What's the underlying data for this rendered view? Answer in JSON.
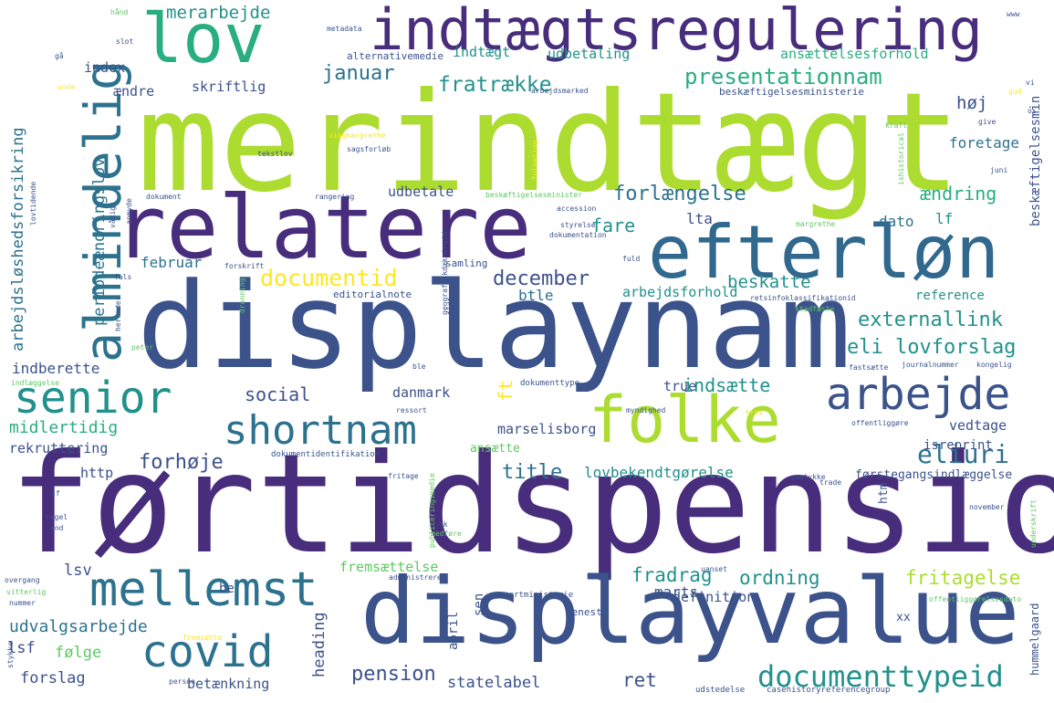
{
  "palette": {
    "purple_dark": "#440154",
    "indigo": "#472d7b",
    "blue": "#3b528b",
    "steel": "#2c728e",
    "teal": "#21918c",
    "green": "#28ae80",
    "lime": "#5ec962",
    "yellowgreen": "#addc30",
    "yellow": "#fde725"
  },
  "words": [
    {
      "text": "merindtægt",
      "color": "#addc30",
      "weight": 1.0
    },
    {
      "text": "førtidspension",
      "color": "#472d7b",
      "weight": 0.96
    },
    {
      "text": "displaynam",
      "color": "#3b528b",
      "weight": 0.92
    },
    {
      "text": "displayvalue",
      "color": "#3b528b",
      "weight": 0.74
    },
    {
      "text": "relatere",
      "color": "#472d7b",
      "weight": 0.72
    },
    {
      "text": "efterløn",
      "color": "#31688e",
      "weight": 0.62
    },
    {
      "text": "folke",
      "color": "#addc30",
      "weight": 0.56
    },
    {
      "text": "lov",
      "color": "#28ae80",
      "weight": 0.56
    },
    {
      "text": "indtægtsregulering",
      "color": "#472d7b",
      "weight": 0.5
    },
    {
      "text": "almindelig",
      "color": "#2c728e",
      "weight": 0.45
    },
    {
      "text": "senior",
      "color": "#21918c",
      "weight": 0.43
    },
    {
      "text": "mellemst",
      "color": "#2c728e",
      "weight": 0.43
    },
    {
      "text": "arbejde",
      "color": "#3b528b",
      "weight": 0.41
    },
    {
      "text": "shortnam",
      "color": "#2c728e",
      "weight": 0.39
    },
    {
      "text": "covid",
      "color": "#2c728e",
      "weight": 0.39
    },
    {
      "text": "documenttypeid",
      "color": "#21918c",
      "weight": 0.3
    },
    {
      "text": "eliuri",
      "color": "#2c728e",
      "weight": 0.25
    },
    {
      "text": "documentid",
      "color": "#fde725",
      "weight": 0.23
    },
    {
      "text": "presentationnam",
      "color": "#28ae80",
      "weight": 0.22
    },
    {
      "text": "fratrække",
      "color": "#21918c",
      "weight": 0.21
    },
    {
      "text": "externallink",
      "color": "#21918c",
      "weight": 0.2
    },
    {
      "text": "eli lovforslag",
      "color": "#21918c",
      "weight": 0.2
    },
    {
      "text": "pension",
      "color": "#3b528b",
      "weight": 0.2
    },
    {
      "text": "title",
      "color": "#2c728e",
      "weight": 0.2
    },
    {
      "text": "forhøje",
      "color": "#3b528b",
      "weight": 0.2
    },
    {
      "text": "forlængelse",
      "color": "#2c728e",
      "weight": 0.2
    },
    {
      "text": "januar",
      "color": "#2c728e",
      "weight": 0.2
    },
    {
      "text": "december",
      "color": "#3b528b",
      "weight": 0.2
    },
    {
      "text": "ordning",
      "color": "#21918c",
      "weight": 0.19
    },
    {
      "text": "fritagelse",
      "color": "#addc30",
      "weight": 0.19
    },
    {
      "text": "fradrag",
      "color": "#21918c",
      "weight": 0.19
    },
    {
      "text": "ret",
      "color": "#3b528b",
      "weight": 0.19
    },
    {
      "text": "ændring",
      "color": "#28ae80",
      "weight": 0.18
    },
    {
      "text": "social",
      "color": "#3b528b",
      "weight": 0.18
    },
    {
      "text": "indsætte",
      "color": "#21918c",
      "weight": 0.18
    },
    {
      "text": "ft",
      "color": "#fde725",
      "weight": 0.18
    },
    {
      "text": "merarbejde",
      "color": "#21918c",
      "weight": 0.17
    },
    {
      "text": "fare",
      "color": "#21918c",
      "weight": 0.17
    },
    {
      "text": "beskatte",
      "color": "#21918c",
      "weight": 0.17
    },
    {
      "text": "høj",
      "color": "#3b528b",
      "weight": 0.17
    },
    {
      "text": "udvalgsarbejde",
      "color": "#2c728e",
      "weight": 0.16
    },
    {
      "text": "midlertidig",
      "color": "#28ae80",
      "weight": 0.16
    },
    {
      "text": "arbejdsløshedsforsikring",
      "color": "#2c728e",
      "weight": 0.15
    },
    {
      "text": "periodeændringslov",
      "color": "#2c728e",
      "weight": 0.15
    },
    {
      "text": "heading",
      "color": "#3b528b",
      "weight": 0.15
    },
    {
      "text": "statelabel",
      "color": "#3b528b",
      "weight": 0.15
    },
    {
      "text": "forslag",
      "color": "#3b528b",
      "weight": 0.15
    },
    {
      "text": "følge",
      "color": "#5ec962",
      "weight": 0.15
    },
    {
      "text": "lsf",
      "color": "#3b528b",
      "weight": 0.15
    },
    {
      "text": "lsv",
      "color": "#3b528b",
      "weight": 0.15
    },
    {
      "text": "marts",
      "color": "#3b528b",
      "weight": 0.15
    },
    {
      "text": "lovbekendtgørelse",
      "color": "#21918c",
      "weight": 0.14
    },
    {
      "text": "btle",
      "color": "#2c728e",
      "weight": 0.14
    },
    {
      "text": "lta",
      "color": "#3b528b",
      "weight": 0.14
    },
    {
      "text": "dato",
      "color": "#2c728e",
      "weight": 0.14
    },
    {
      "text": "lf",
      "color": "#21918c",
      "weight": 0.14
    },
    {
      "text": "foretage",
      "color": "#2c728e",
      "weight": 0.14
    },
    {
      "text": "februar",
      "color": "#2c728e",
      "weight": 0.14
    },
    {
      "text": "indberette",
      "color": "#3b528b",
      "weight": 0.14
    },
    {
      "text": "arbejdsforhold",
      "color": "#21918c",
      "weight": 0.13
    },
    {
      "text": "definition",
      "color": "#3b528b",
      "weight": 0.13
    },
    {
      "text": "betænkning",
      "color": "#3b528b",
      "weight": 0.13
    },
    {
      "text": "udbetale",
      "color": "#3b528b",
      "weight": 0.13
    },
    {
      "text": "udbetaling",
      "color": "#21918c",
      "weight": 0.13
    },
    {
      "text": "indtægt",
      "color": "#21918c",
      "weight": 0.13
    },
    {
      "text": "ansættelsesforhold",
      "color": "#28ae80",
      "weight": 0.13
    },
    {
      "text": "skriftlig",
      "color": "#3b528b",
      "weight": 0.13
    },
    {
      "text": "ændre",
      "color": "#3b528b",
      "weight": 0.13
    },
    {
      "text": "index",
      "color": "#3b528b",
      "weight": 0.13
    },
    {
      "text": "marselisborg",
      "color": "#3b528b",
      "weight": 0.13
    },
    {
      "text": "danmark",
      "color": "#3b528b",
      "weight": 0.13
    },
    {
      "text": "true",
      "color": "#3b528b",
      "weight": 0.13
    },
    {
      "text": "vedtage",
      "color": "#3b528b",
      "weight": 0.13
    },
    {
      "text": "http",
      "color": "#3b528b",
      "weight": 0.13
    },
    {
      "text": "rekruttering",
      "color": "#3b528b",
      "weight": 0.13
    },
    {
      "text": "fremsættelse",
      "color": "#5ec962",
      "weight": 0.12
    },
    {
      "text": "beskæftigelsesmin",
      "color": "#3b528b",
      "weight": 0.12
    },
    {
      "text": "april",
      "color": "#3b528b",
      "weight": 0.12
    },
    {
      "text": "sen",
      "color": "#3b528b",
      "weight": 0.12
    },
    {
      "text": "be",
      "color": "#3b528b",
      "weight": 0.12
    },
    {
      "text": "reference",
      "color": "#21918c",
      "weight": 0.12
    },
    {
      "text": "isreprint",
      "color": "#3b528b",
      "weight": 0.11
    },
    {
      "text": "førstegangsindlæggelse",
      "color": "#3b528b",
      "weight": 0.11
    },
    {
      "text": "ansætte",
      "color": "#5ec962",
      "weight": 0.11
    },
    {
      "text": "htm",
      "color": "#3b528b",
      "weight": 0.11
    },
    {
      "text": "hummelgaard",
      "color": "#3b528b",
      "weight": 0.1
    },
    {
      "text": "xx",
      "color": "#3b528b",
      "weight": 0.11
    },
    {
      "text": "beskæftigelsesministerie",
      "color": "#3b528b",
      "weight": 0.09
    },
    {
      "text": "alternativemedie",
      "color": "#3b528b",
      "weight": 0.08
    },
    {
      "text": "editorialnote",
      "color": "#3b528b",
      "weight": 0.08
    },
    {
      "text": "samling",
      "color": "#3b528b",
      "weight": 0.08
    },
    {
      "text": "senest",
      "color": "#3b528b",
      "weight": 0.08
    },
    {
      "text": "dokumenttype",
      "color": "#3b528b",
      "weight": 0.07
    },
    {
      "text": "ressortministerie",
      "color": "#3b528b",
      "weight": 0.07
    },
    {
      "text": "casehistoryreferencegroup",
      "color": "#3b528b",
      "weight": 0.07
    },
    {
      "text": "udstedelse",
      "color": "#3b528b",
      "weight": 0.07
    },
    {
      "text": "dokumentidentifikation",
      "color": "#3b528b",
      "weight": 0.07
    },
    {
      "text": "retsinfoklassifikationid",
      "color": "#3b528b",
      "weight": 0.06
    },
    {
      "text": "offentliggørelsesdato",
      "color": "#5ec962",
      "weight": 0.06
    },
    {
      "text": "journalnummer",
      "color": "#3b528b",
      "weight": 0.06
    },
    {
      "text": "publiceringsmedie",
      "color": "#5ec962",
      "weight": 0.06
    },
    {
      "text": "geografiskdækningid",
      "color": "#3b528b",
      "weight": 0.06
    },
    {
      "text": "beskæftigelsesminister",
      "color": "#5ec962",
      "weight": 0.06
    },
    {
      "text": "metadata",
      "color": "#3b528b",
      "weight": 0.06
    },
    {
      "text": "arbejdsmarked",
      "color": "#3b528b",
      "weight": 0.06
    },
    {
      "text": "sagsforløb",
      "color": "#3b528b",
      "weight": 0.06
    },
    {
      "text": "tekstlov",
      "color": "#3b528b",
      "weight": 0.06
    },
    {
      "text": "dokument",
      "color": "#3b528b",
      "weight": 0.06
    },
    {
      "text": "rangering",
      "color": "#3b528b",
      "weight": 0.06
    },
    {
      "text": "accession",
      "color": "#3b528b",
      "weight": 0.06
    },
    {
      "text": "dokumentation",
      "color": "#3b528b",
      "weight": 0.06
    },
    {
      "text": "styrelse",
      "color": "#3b528b",
      "weight": 0.06
    },
    {
      "text": "forskrift",
      "color": "#3b528b",
      "weight": 0.06
    },
    {
      "text": "fuld",
      "color": "#3b528b",
      "weight": 0.06
    },
    {
      "text": "stadfæste",
      "color": "#5ec962",
      "weight": 0.06
    },
    {
      "text": "fastsætte",
      "color": "#3b528b",
      "weight": 0.06
    },
    {
      "text": "kongelig",
      "color": "#3b528b",
      "weight": 0.06
    },
    {
      "text": "myndighed",
      "color": "#3b528b",
      "weight": 0.06
    },
    {
      "text": "krav",
      "color": "#fde725",
      "weight": 0.06
    },
    {
      "text": "offentliggøre",
      "color": "#3b528b",
      "weight": 0.06
    },
    {
      "text": "samtykke",
      "color": "#3b528b",
      "weight": 0.06
    },
    {
      "text": "trade",
      "color": "#3b528b",
      "weight": 0.06
    },
    {
      "text": "november",
      "color": "#3b528b",
      "weight": 0.06
    },
    {
      "text": "fritage",
      "color": "#3b528b",
      "weight": 0.06
    },
    {
      "text": "medføre",
      "color": "#5ec962",
      "weight": 0.06
    },
    {
      "text": "dk",
      "color": "#3b528b",
      "weight": 0.06
    },
    {
      "text": "uanset",
      "color": "#3b528b",
      "weight": 0.06
    },
    {
      "text": "administrere",
      "color": "#3b528b",
      "weight": 0.06
    },
    {
      "text": "ressort",
      "color": "#3b528b",
      "weight": 0.06
    },
    {
      "text": "ble",
      "color": "#3b528b",
      "weight": 0.06
    },
    {
      "text": "nåde",
      "color": "#3b528b",
      "weight": 0.06
    },
    {
      "text": "margrethe",
      "color": "#5ec962",
      "weight": 0.06
    },
    {
      "text": "juni",
      "color": "#3b528b",
      "weight": 0.06
    },
    {
      "text": "give",
      "color": "#3b528b",
      "weight": 0.06
    },
    {
      "text": "kraft",
      "color": "#5ec962",
      "weight": 0.06
    },
    {
      "text": "gud",
      "color": "#fde725",
      "weight": 0.06
    },
    {
      "text": "ishistorical",
      "color": "#5ec962",
      "weight": 0.06
    },
    {
      "text": "folketing",
      "color": "#fde725",
      "weight": 0.06
    },
    {
      "text": "vi",
      "color": "#3b528b",
      "weight": 0.06
    },
    {
      "text": "os",
      "color": "#3b528b",
      "weight": 0.06
    },
    {
      "text": "vådigt",
      "color": "#3b528b",
      "weight": 0.06
    },
    {
      "text": "anmyde",
      "color": "#3b528b",
      "weight": 0.06
    },
    {
      "text": "dronning",
      "color": "#5ec962",
      "weight": 0.06
    },
    {
      "text": "viggmargrethe",
      "color": "#fde725",
      "weight": 0.06
    },
    {
      "text": "slot",
      "color": "#3b528b",
      "weight": 0.06
    },
    {
      "text": "hånd",
      "color": "#5ec962",
      "weight": 0.06
    },
    {
      "text": "gå",
      "color": "#3b528b",
      "weight": 0.06
    },
    {
      "text": "unde",
      "color": "#fde725",
      "weight": 0.06
    },
    {
      "text": "www",
      "color": "#3b528b",
      "weight": 0.06
    },
    {
      "text": "lovtidende",
      "color": "#3b528b",
      "weight": 0.06
    },
    {
      "text": "fals",
      "color": "#3b528b",
      "weight": 0.06
    },
    {
      "text": "herunder",
      "color": "#3b528b",
      "weight": 0.06
    },
    {
      "text": "peter",
      "color": "#5ec962",
      "weight": 0.06
    },
    {
      "text": "indlæggelse",
      "color": "#5ec962",
      "weight": 0.06
    },
    {
      "text": "sf",
      "color": "#3b528b",
      "weight": 0.06
    },
    {
      "text": "regel",
      "color": "#3b528b",
      "weight": 0.06
    },
    {
      "text": "and",
      "color": "#3b528b",
      "weight": 0.06
    },
    {
      "text": "overgang",
      "color": "#3b528b",
      "weight": 0.06
    },
    {
      "text": "vitterlig",
      "color": "#5ec962",
      "weight": 0.06
    },
    {
      "text": "nummer",
      "color": "#3b528b",
      "weight": 0.06
    },
    {
      "text": "stykke",
      "color": "#3b528b",
      "weight": 0.06
    },
    {
      "text": "fremsætte",
      "color": "#fde725",
      "weight": 0.06
    },
    {
      "text": "person",
      "color": "#3b528b",
      "weight": 0.06
    },
    {
      "text": "underskrift",
      "color": "#5ec962",
      "weight": 0.06
    }
  ]
}
